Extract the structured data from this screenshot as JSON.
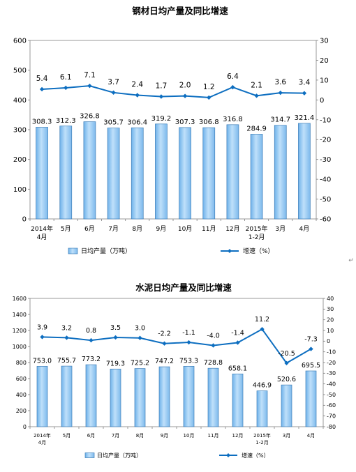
{
  "chart_data": [
    {
      "type": "bar",
      "title": "钢材日均产量及同比增速",
      "categories": [
        [
          "2014年",
          "4月"
        ],
        [
          "5月"
        ],
        [
          "6月"
        ],
        [
          "7月"
        ],
        [
          "8月"
        ],
        [
          "9月"
        ],
        [
          "10月"
        ],
        [
          "11月"
        ],
        [
          "12月"
        ],
        [
          "2015年",
          "1-2月"
        ],
        [
          "3月"
        ],
        [
          "4月"
        ]
      ],
      "series": [
        {
          "name": "日均产量（万吨）",
          "type": "bar",
          "axis": "left",
          "values": [
            308.3,
            312.3,
            326.8,
            305.7,
            306.4,
            319.2,
            307.3,
            306.8,
            316.8,
            284.9,
            314.7,
            321.4
          ],
          "labels": [
            "308.3",
            "312.3",
            "326.8",
            "305.7",
            "306.4",
            "319.2",
            "307.3",
            "306.8",
            "316.8",
            "284.9",
            "314.7",
            "321.4"
          ]
        },
        {
          "name": "增速（%）",
          "type": "line",
          "axis": "right",
          "values": [
            5.4,
            6.1,
            7.1,
            3.7,
            2.4,
            1.7,
            2.0,
            1.2,
            6.4,
            2.1,
            3.6,
            3.4
          ],
          "labels": [
            "5.4",
            "6.1",
            "7.1",
            "3.7",
            "2.4",
            "1.7",
            "2.0",
            "1.2",
            "6.4",
            "2.1",
            "3.6",
            "3.4"
          ]
        }
      ],
      "ylim_left": [
        0,
        600
      ],
      "yticks_left": [
        0,
        100,
        200,
        300,
        400,
        500,
        600
      ],
      "ylim_right": [
        -60,
        30
      ],
      "yticks_right": [
        -60,
        -50,
        -40,
        -30,
        -20,
        -10,
        0,
        10,
        20,
        30
      ],
      "legend": "bottom",
      "bar_color": "#8CC4F0",
      "line_color": "#0D6EC0"
    },
    {
      "type": "bar",
      "title": "水泥日均产量及同比增速",
      "categories": [
        [
          "2014年",
          "4月"
        ],
        [
          "5月"
        ],
        [
          "6月"
        ],
        [
          "7月"
        ],
        [
          "8月"
        ],
        [
          "9月"
        ],
        [
          "10月"
        ],
        [
          "11月"
        ],
        [
          "12月"
        ],
        [
          "2015年",
          "1-2月"
        ],
        [
          "3月"
        ],
        [
          "4月"
        ]
      ],
      "series": [
        {
          "name": "日均产量（万吨）",
          "type": "bar",
          "axis": "left",
          "values": [
            753.0,
            755.7,
            773.2,
            719.3,
            725.2,
            747.2,
            753.3,
            728.8,
            658.1,
            446.9,
            520.6,
            695.5
          ],
          "labels": [
            "753.0",
            "755.7",
            "773.2",
            "719.3",
            "725.2",
            "747.2",
            "753.3",
            "728.8",
            "658.1",
            "446.9",
            "520.6",
            "695.5"
          ]
        },
        {
          "name": "增速（%）",
          "type": "line",
          "axis": "right",
          "values": [
            3.9,
            3.2,
            0.8,
            3.5,
            3.0,
            -2.2,
            -1.1,
            -4.0,
            -1.4,
            11.2,
            -20.5,
            -7.3
          ],
          "labels": [
            "3.9",
            "3.2",
            "0.8",
            "3.5",
            "3.0",
            "-2.2",
            "-1.1",
            "-4.0",
            "-1.4",
            "11.2",
            "-20.5",
            "-7.3"
          ]
        }
      ],
      "ylim_left": [
        0,
        1600
      ],
      "yticks_left": [
        0,
        200,
        400,
        600,
        800,
        1000,
        1200,
        1400,
        1600
      ],
      "ylim_right": [
        -80,
        40
      ],
      "yticks_right": [
        -80,
        -70,
        -60,
        -50,
        -40,
        -30,
        -20,
        -10,
        0,
        10,
        20,
        30,
        40
      ],
      "legend": "bottom",
      "bar_color": "#8CC4F0",
      "line_color": "#0D6EC0"
    }
  ]
}
